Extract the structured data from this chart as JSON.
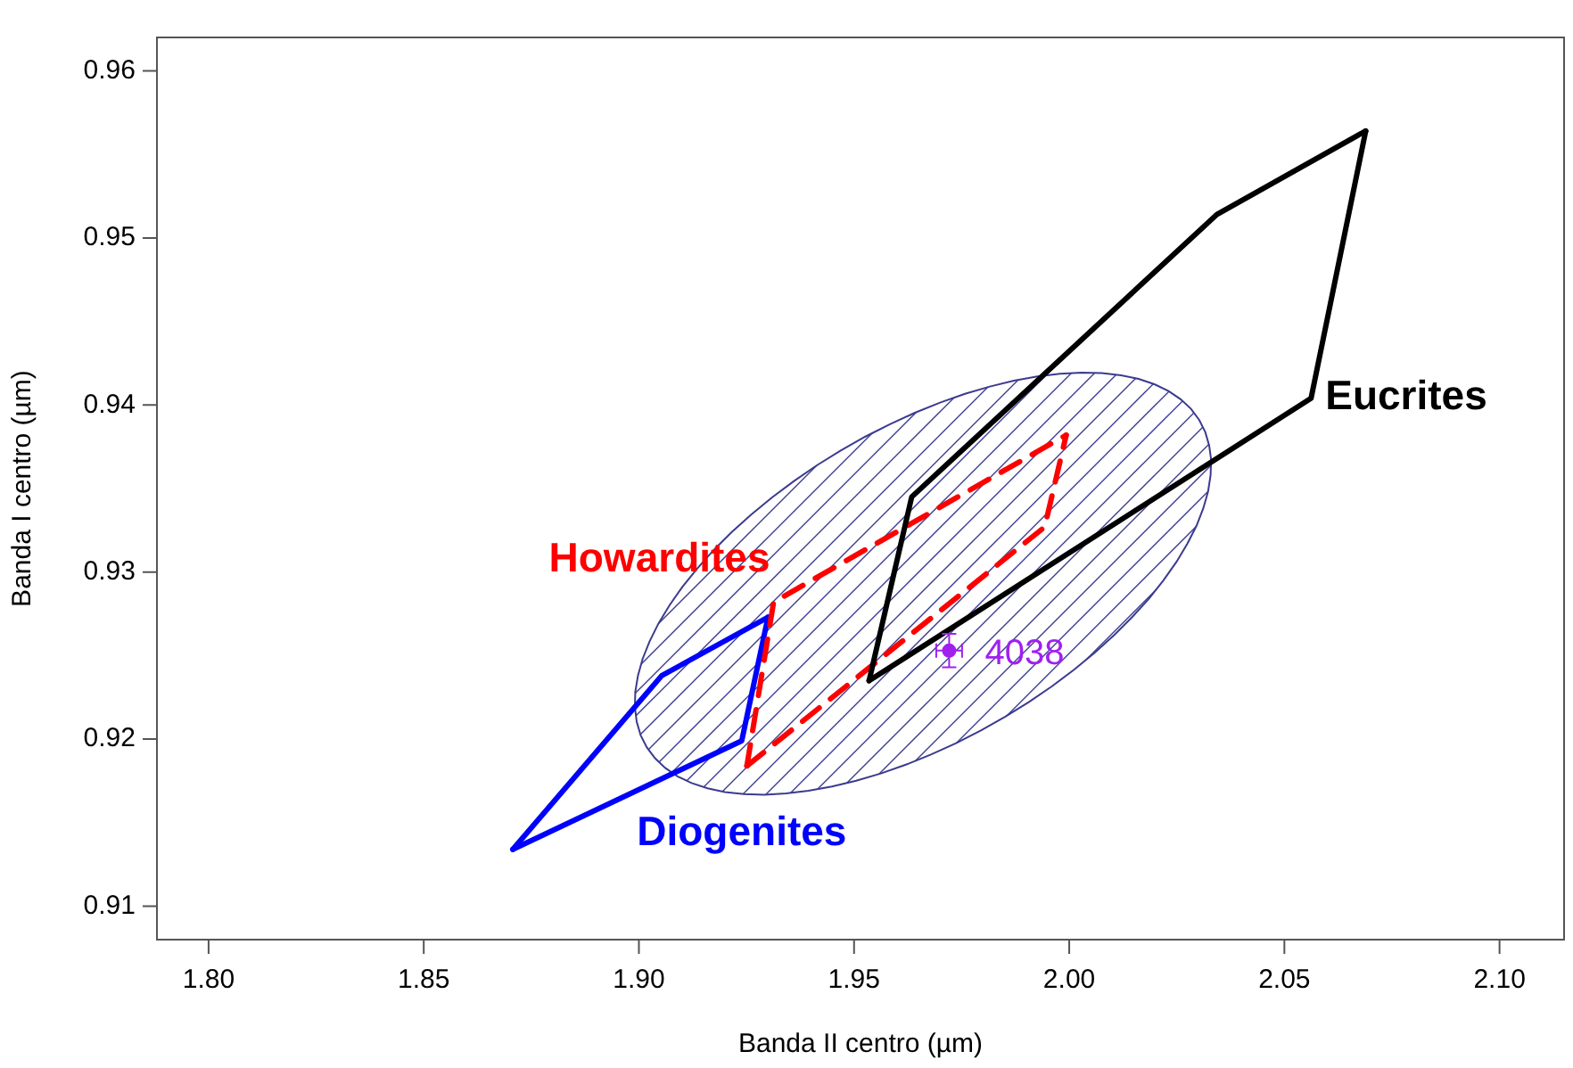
{
  "chart_data": {
    "type": "line",
    "xlabel": "Banda II centro (µm)",
    "ylabel": "Banda I centro (µm)",
    "xlim": [
      1.788,
      2.115
    ],
    "ylim": [
      0.908,
      0.962
    ],
    "xticks": [
      {
        "value": 1.8,
        "label": "1.80"
      },
      {
        "value": 1.85,
        "label": "1.85"
      },
      {
        "value": 1.9,
        "label": "1.90"
      },
      {
        "value": 1.95,
        "label": "1.95"
      },
      {
        "value": 2.0,
        "label": "2.00"
      },
      {
        "value": 2.05,
        "label": "2.05"
      },
      {
        "value": 2.1,
        "label": "2.10"
      }
    ],
    "yticks": [
      0.91,
      0.92,
      0.93,
      0.94,
      0.95,
      0.96
    ],
    "grid": false,
    "legend": false,
    "marker": "none",
    "series": [
      {
        "color": "#000000",
        "line_style": "solid",
        "x": [
          1.9535,
          1.9634,
          2.0343,
          2.0689
        ],
        "values": [
          0.9235,
          0.9345,
          0.9514,
          0.9564
        ]
      },
      {
        "name": "Eucrites",
        "color": "#000000",
        "line_style": "solid",
        "x": [
          1.9535,
          2.0562,
          2.0689
        ],
        "values": [
          0.9235,
          0.9404,
          0.9564
        ]
      },
      {
        "name": "Howardites",
        "color": "#ff0000",
        "line_style": "dashed",
        "x": [
          1.9251,
          1.9313,
          1.9993
        ],
        "values": [
          0.9184,
          0.9282,
          0.9382
        ]
      },
      {
        "color": "#ff0000",
        "line_style": "dashed",
        "x": [
          1.9251,
          1.9943,
          1.9993
        ],
        "values": [
          0.9184,
          0.9327,
          0.9382
        ]
      },
      {
        "color": "#0000ff",
        "line_style": "solid",
        "x": [
          1.8707,
          1.9053,
          1.93
        ],
        "values": [
          0.9134,
          0.9238,
          0.9273
        ]
      },
      {
        "name": "Diogenites",
        "color": "#0000ff",
        "line_style": "solid",
        "x": [
          1.8707,
          1.9239,
          1.93
        ],
        "values": [
          0.9134,
          0.9199,
          0.9273
        ]
      },
      {
        "type": "scatter",
        "name": "4038",
        "color": "#a020f0",
        "marker": "circle",
        "x": [
          1.9721
        ],
        "values": [
          0.9253
        ],
        "errors": [
          0.001
        ],
        "xerrors": [
          0.003
        ]
      }
    ]
  }
}
